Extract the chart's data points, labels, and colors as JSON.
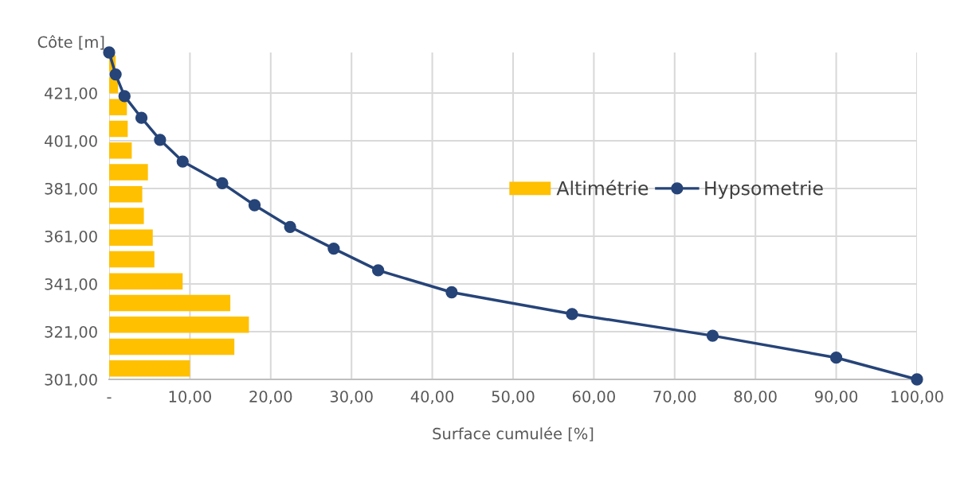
{
  "chart_data": {
    "type": "bar",
    "orientation": "horizontal",
    "xlabel": "Surface cumulée [%]",
    "ylabel": "Côte [m]",
    "xlim": [
      0,
      100
    ],
    "xticks": [
      {
        "value": 0,
        "label": "-"
      },
      {
        "value": 10,
        "label": "10,00"
      },
      {
        "value": 20,
        "label": "20,00"
      },
      {
        "value": 30,
        "label": "30,00"
      },
      {
        "value": 40,
        "label": "40,00"
      },
      {
        "value": 50,
        "label": "50,00"
      },
      {
        "value": 60,
        "label": "60,00"
      },
      {
        "value": 70,
        "label": "70,00"
      },
      {
        "value": 80,
        "label": "80,00"
      },
      {
        "value": 90,
        "label": "90,00"
      },
      {
        "value": 100,
        "label": "100,00"
      }
    ],
    "ylim": [
      301,
      438
    ],
    "yticks": [
      {
        "value": 301,
        "label": "301,00"
      },
      {
        "value": 321,
        "label": "321,00"
      },
      {
        "value": 341,
        "label": "341,00"
      },
      {
        "value": 361,
        "label": "361,00"
      },
      {
        "value": 381,
        "label": "381,00"
      },
      {
        "value": 401,
        "label": "401,00"
      },
      {
        "value": 421,
        "label": "421,00"
      }
    ],
    "grid": true,
    "legend": "right",
    "series": [
      {
        "name": "Altimétrie",
        "color": "#ffc000",
        "x": [
          305.6,
          314.7,
          323.9,
          333.0,
          342.1,
          351.3,
          360.4,
          369.5,
          378.6,
          387.8,
          396.9,
          406.0,
          415.1,
          424.3,
          433.4
        ],
        "values": [
          10.0,
          15.5,
          17.3,
          15.0,
          9.1,
          5.6,
          5.4,
          4.3,
          4.1,
          4.8,
          2.8,
          2.3,
          2.2,
          1.1,
          0.8
        ]
      },
      {
        "name": "Hypsometrie",
        "type": "line",
        "color": "#264478",
        "marker": "circle",
        "line_style": "solid",
        "x": [
          301,
          310.1,
          319.3,
          328.4,
          337.5,
          346.7,
          355.8,
          364.9,
          374.0,
          383.2,
          392.3,
          401.4,
          410.6,
          419.7,
          428.8,
          438
        ],
        "values": [
          100,
          90.0,
          74.7,
          57.3,
          42.4,
          33.3,
          27.8,
          22.4,
          18.0,
          14.0,
          9.1,
          6.3,
          4.0,
          1.9,
          0.8,
          0
        ]
      }
    ]
  }
}
